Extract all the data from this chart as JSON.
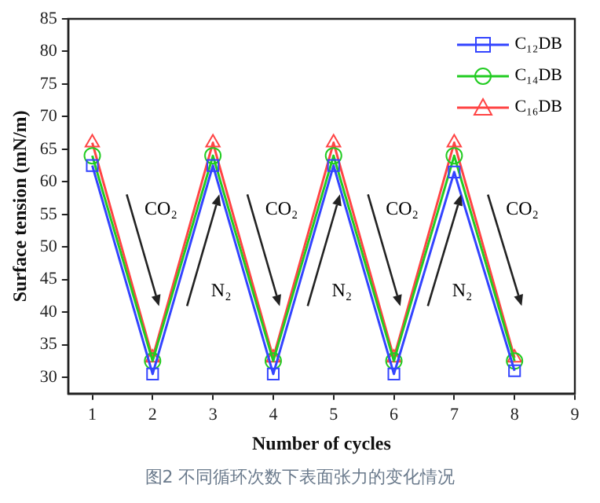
{
  "chart_data": {
    "type": "line",
    "xlabel": "Number of cycles",
    "ylabel": "Surface tension (mN/m)",
    "x": [
      1,
      2,
      3,
      4,
      5,
      6,
      7,
      8
    ],
    "series": [
      {
        "name": "C₁₂DB",
        "color": "#3344ff",
        "marker": "square",
        "values": [
          62.5,
          30.5,
          62.5,
          30.5,
          62.5,
          30.5,
          61.5,
          31
        ]
      },
      {
        "name": "C₁₄DB",
        "color": "#22cc22",
        "marker": "circle",
        "values": [
          64,
          32.5,
          64,
          32.5,
          64,
          32.5,
          64,
          32.5
        ]
      },
      {
        "name": "C₁₆DB",
        "color": "#ff4444",
        "marker": "triangle",
        "values": [
          66,
          33,
          66,
          33,
          66,
          33,
          66,
          33
        ]
      }
    ],
    "xlim": [
      0.6,
      9
    ],
    "xticks": [
      1,
      2,
      3,
      4,
      5,
      6,
      7,
      8,
      9
    ],
    "ylim": [
      27.5,
      85
    ],
    "yticks": [
      30,
      35,
      40,
      45,
      50,
      55,
      60,
      65,
      70,
      75,
      80,
      85
    ],
    "grid": false,
    "legend": "top right",
    "line_style": "solid",
    "annotations": [
      {
        "text": "CO₂",
        "x": 1.5,
        "y": 49.5
      },
      {
        "text": "N₂",
        "x": 2.5,
        "y": 49.5
      },
      {
        "text": "CO₂",
        "x": 3.5,
        "y": 49.5
      },
      {
        "text": "N₂",
        "x": 4.5,
        "y": 49.5
      },
      {
        "text": "CO₂",
        "x": 5.5,
        "y": 49.5
      },
      {
        "text": "N₂",
        "x": 6.5,
        "y": 49.5
      },
      {
        "text": "CO₂",
        "x": 7.5,
        "y": 49.5
      },
      "图2 不同循环次数下表面张力的变化情况"
    ]
  }
}
